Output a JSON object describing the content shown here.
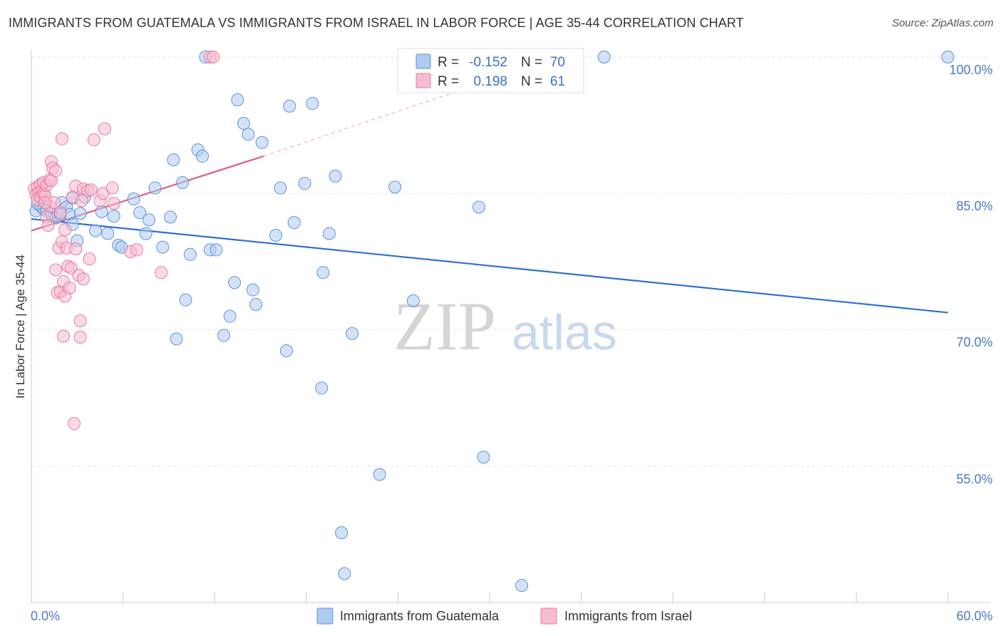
{
  "title": "IMMIGRANTS FROM GUATEMALA VS IMMIGRANTS FROM ISRAEL IN LABOR FORCE | AGE 35-44 CORRELATION CHART",
  "source": "Source: ZipAtlas.com",
  "watermark": {
    "part1": "ZIP",
    "part2": "atlas"
  },
  "legend": {
    "rows": [
      {
        "r_label": "R =",
        "r_value": "-0.152",
        "n_label": "N =",
        "n_value": "70",
        "color": "#aecbf0",
        "stroke": "#5e93d8"
      },
      {
        "r_label": "R =",
        "r_value": "0.198",
        "n_label": "N =",
        "n_value": "61",
        "color": "#f6bcd0",
        "stroke": "#e8799e"
      }
    ]
  },
  "bottom_legend": [
    "Immigrants from Guatemala",
    "Immigrants from Israel"
  ],
  "chart_data": {
    "type": "scatter",
    "title": "IMMIGRANTS FROM GUATEMALA VS IMMIGRANTS FROM ISRAEL IN LABOR FORCE | AGE 35-44 CORRELATION CHART",
    "xlabel": "",
    "ylabel": "In Labor Force | Age 35-44",
    "xlim": [
      0,
      60
    ],
    "ylim": [
      40,
      101
    ],
    "x_tick_labels": [
      "0.0%",
      "60.0%"
    ],
    "y_ticks": [
      55,
      70,
      85,
      100
    ],
    "y_tick_labels": [
      "55.0%",
      "70.0%",
      "85.0%",
      "100.0%"
    ],
    "series": [
      {
        "name": "Immigrants from Guatemala",
        "color": "#aecbf0",
        "stroke": "#5e93d8",
        "line_color": "#2e6fd1",
        "trend": {
          "x": [
            0,
            60
          ],
          "y": [
            82.2,
            71.9
          ],
          "dashed_to": null
        },
        "points": [
          [
            0.3,
            83.1
          ],
          [
            0.6,
            83.6
          ],
          [
            0.8,
            83.3
          ],
          [
            1.0,
            83.1
          ],
          [
            1.3,
            82.8
          ],
          [
            1.6,
            82.3
          ],
          [
            2.0,
            84.0
          ],
          [
            2.3,
            83.5
          ],
          [
            2.5,
            82.7
          ],
          [
            2.7,
            81.6
          ],
          [
            2.7,
            84.5
          ],
          [
            3.0,
            79.8
          ],
          [
            3.5,
            84.6
          ],
          [
            4.2,
            80.9
          ],
          [
            4.6,
            83.0
          ],
          [
            5.0,
            80.6
          ],
          [
            5.4,
            82.5
          ],
          [
            5.7,
            79.3
          ],
          [
            5.9,
            79.1
          ],
          [
            6.7,
            84.4
          ],
          [
            7.1,
            82.9
          ],
          [
            7.5,
            80.6
          ],
          [
            7.7,
            82.1
          ],
          [
            8.1,
            85.6
          ],
          [
            8.6,
            79.1
          ],
          [
            9.1,
            82.4
          ],
          [
            9.3,
            88.7
          ],
          [
            9.5,
            69.0
          ],
          [
            9.9,
            86.2
          ],
          [
            10.1,
            73.3
          ],
          [
            10.4,
            78.3
          ],
          [
            10.9,
            89.8
          ],
          [
            11.2,
            89.1
          ],
          [
            11.4,
            100.0
          ],
          [
            11.7,
            78.8
          ],
          [
            12.1,
            78.8
          ],
          [
            12.6,
            69.4
          ],
          [
            13.0,
            71.5
          ],
          [
            13.3,
            75.2
          ],
          [
            13.5,
            95.3
          ],
          [
            13.9,
            92.7
          ],
          [
            14.2,
            91.5
          ],
          [
            14.5,
            74.4
          ],
          [
            14.7,
            72.8
          ],
          [
            15.1,
            90.6
          ],
          [
            16.3,
            85.6
          ],
          [
            16.7,
            67.7
          ],
          [
            16.9,
            94.6
          ],
          [
            17.2,
            81.8
          ],
          [
            17.9,
            86.1
          ],
          [
            18.4,
            94.9
          ],
          [
            19.0,
            63.6
          ],
          [
            19.1,
            76.3
          ],
          [
            19.5,
            80.6
          ],
          [
            19.9,
            86.9
          ],
          [
            20.3,
            47.7
          ],
          [
            20.5,
            43.2
          ],
          [
            21.0,
            69.6
          ],
          [
            22.8,
            54.1
          ],
          [
            23.8,
            85.7
          ],
          [
            25.0,
            73.2
          ],
          [
            29.3,
            83.5
          ],
          [
            29.6,
            56.0
          ],
          [
            32.1,
            41.9
          ],
          [
            37.5,
            100.0
          ],
          [
            60.0,
            100.0
          ],
          [
            1.9,
            82.7
          ],
          [
            3.2,
            82.8
          ],
          [
            16.0,
            80.4
          ],
          [
            0.4,
            83.9
          ]
        ]
      },
      {
        "name": "Immigrants from Israel",
        "color": "#f6bcd0",
        "stroke": "#e8799e",
        "line_color": "#e2597f",
        "trend": {
          "x": [
            0,
            15.2
          ],
          "y": [
            80.9,
            89.1
          ],
          "dashed_to": {
            "x": 30.0,
            "y": 97.4
          }
        },
        "points": [
          [
            0.2,
            85.5
          ],
          [
            0.3,
            84.9
          ],
          [
            0.4,
            85.7
          ],
          [
            0.4,
            84.3
          ],
          [
            0.5,
            85.2
          ],
          [
            0.6,
            86.0
          ],
          [
            0.6,
            84.6
          ],
          [
            0.7,
            85.3
          ],
          [
            0.8,
            86.2
          ],
          [
            0.8,
            85.0
          ],
          [
            0.9,
            84.8
          ],
          [
            1.0,
            85.9
          ],
          [
            1.0,
            82.4
          ],
          [
            1.1,
            81.5
          ],
          [
            1.2,
            86.5
          ],
          [
            1.2,
            83.6
          ],
          [
            1.3,
            88.5
          ],
          [
            1.3,
            86.4
          ],
          [
            1.4,
            87.8
          ],
          [
            1.5,
            84.0
          ],
          [
            1.6,
            87.5
          ],
          [
            1.6,
            76.6
          ],
          [
            1.7,
            74.1
          ],
          [
            1.8,
            79.0
          ],
          [
            1.9,
            82.9
          ],
          [
            1.9,
            74.2
          ],
          [
            2.0,
            91.0
          ],
          [
            2.0,
            79.7
          ],
          [
            2.1,
            75.3
          ],
          [
            2.1,
            69.3
          ],
          [
            2.2,
            73.7
          ],
          [
            2.2,
            81.0
          ],
          [
            2.3,
            79.0
          ],
          [
            2.4,
            77.0
          ],
          [
            2.5,
            74.6
          ],
          [
            2.6,
            76.8
          ],
          [
            2.7,
            84.6
          ],
          [
            2.8,
            59.7
          ],
          [
            2.9,
            85.8
          ],
          [
            2.9,
            78.9
          ],
          [
            3.1,
            76.0
          ],
          [
            3.2,
            71.0
          ],
          [
            3.2,
            69.2
          ],
          [
            3.3,
            84.2
          ],
          [
            3.4,
            85.5
          ],
          [
            3.4,
            75.6
          ],
          [
            3.7,
            85.3
          ],
          [
            3.8,
            77.8
          ],
          [
            3.9,
            85.4
          ],
          [
            4.1,
            90.9
          ],
          [
            4.5,
            84.2
          ],
          [
            4.7,
            85.0
          ],
          [
            4.8,
            92.1
          ],
          [
            5.3,
            85.6
          ],
          [
            5.4,
            83.9
          ],
          [
            6.5,
            78.6
          ],
          [
            6.9,
            78.8
          ],
          [
            8.5,
            76.3
          ],
          [
            11.7,
            100.0
          ],
          [
            11.9,
            100.0
          ],
          [
            0.9,
            84.0
          ]
        ]
      }
    ]
  }
}
